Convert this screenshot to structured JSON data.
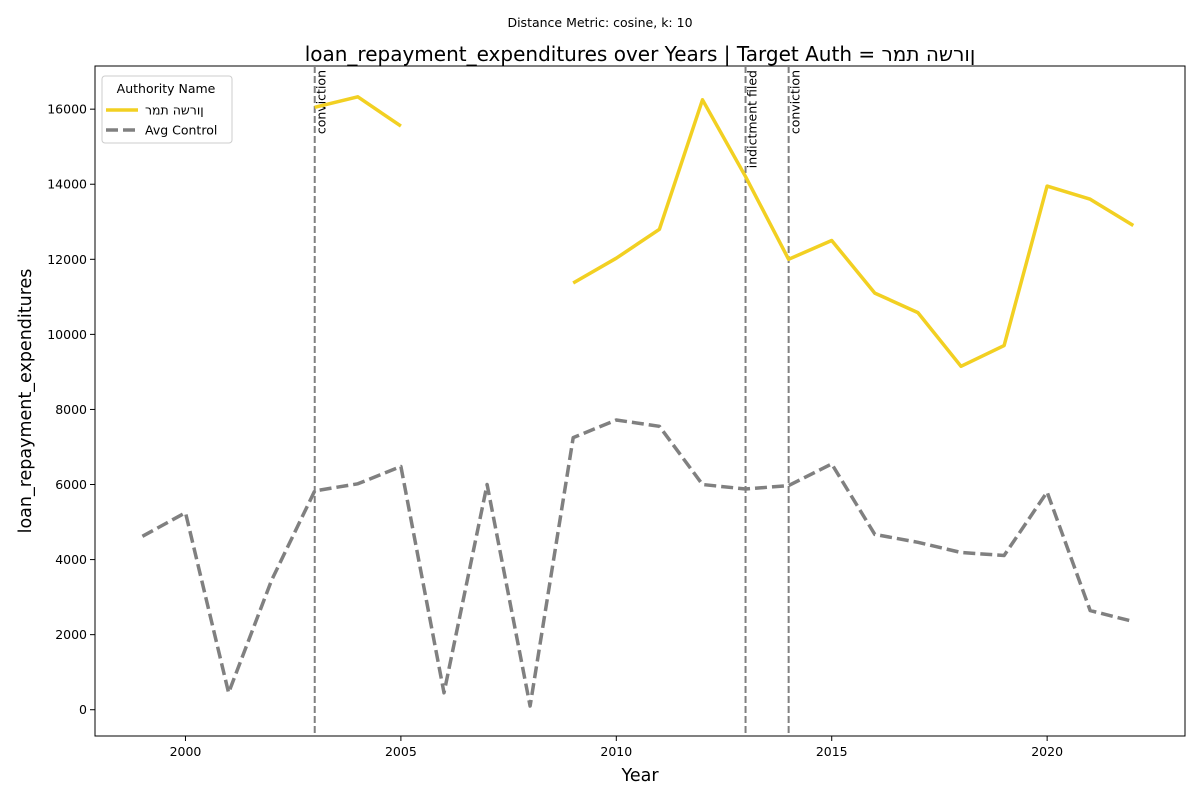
{
  "suptitle": "Distance Metric: cosine, k: 10",
  "chart_data": {
    "type": "line",
    "title": "loan_repayment_expenditures over Years | Target Auth = ןורשה תמר",
    "xlabel": "Year",
    "ylabel": "loan_repayment_expenditures",
    "xlim": [
      1997.9,
      2023.2
    ],
    "ylim": [
      -700,
      17150
    ],
    "xticks": [
      2000,
      2005,
      2010,
      2015,
      2020
    ],
    "yticks": [
      0,
      2000,
      4000,
      6000,
      8000,
      10000,
      12000,
      14000,
      16000
    ],
    "grid": false,
    "legend": {
      "title": "Authority Name",
      "placement": "top-left"
    },
    "series": [
      {
        "name": "ןורשה תמר",
        "color": "#f2d022",
        "style": "solid",
        "points": [
          [
            2003,
            16050
          ],
          [
            2004,
            16330
          ],
          [
            2005,
            15550
          ],
          [
            2006,
            null
          ],
          [
            2007,
            null
          ],
          [
            2008,
            null
          ],
          [
            2009,
            11370
          ],
          [
            2010,
            12030
          ],
          [
            2011,
            12800
          ],
          [
            2012,
            16250
          ],
          [
            2013,
            14200
          ],
          [
            2014,
            12000
          ],
          [
            2015,
            12500
          ],
          [
            2016,
            11100
          ],
          [
            2017,
            10580
          ],
          [
            2018,
            9150
          ],
          [
            2019,
            9700
          ],
          [
            2020,
            13950
          ],
          [
            2021,
            13600
          ],
          [
            2022,
            12900
          ]
        ]
      },
      {
        "name": "Avg Control",
        "color": "#808080",
        "style": "dashed",
        "points": [
          [
            1999,
            4620
          ],
          [
            2000,
            5250
          ],
          [
            2001,
            450
          ],
          [
            2002,
            3450
          ],
          [
            2003,
            5830
          ],
          [
            2004,
            6020
          ],
          [
            2005,
            6480
          ],
          [
            2006,
            450
          ],
          [
            2007,
            6000
          ],
          [
            2008,
            100
          ],
          [
            2009,
            7250
          ],
          [
            2010,
            7720
          ],
          [
            2011,
            7550
          ],
          [
            2012,
            6000
          ],
          [
            2013,
            5880
          ],
          [
            2014,
            5970
          ],
          [
            2015,
            6550
          ],
          [
            2016,
            4670
          ],
          [
            2017,
            4460
          ],
          [
            2018,
            4190
          ],
          [
            2019,
            4110
          ],
          [
            2020,
            5800
          ],
          [
            2021,
            2640
          ],
          [
            2022,
            2350
          ]
        ]
      }
    ],
    "annotations": [
      {
        "x": 2003,
        "label": "conviction"
      },
      {
        "x": 2013,
        "label": "indictment filed"
      },
      {
        "x": 2014,
        "label": "conviction"
      }
    ]
  }
}
